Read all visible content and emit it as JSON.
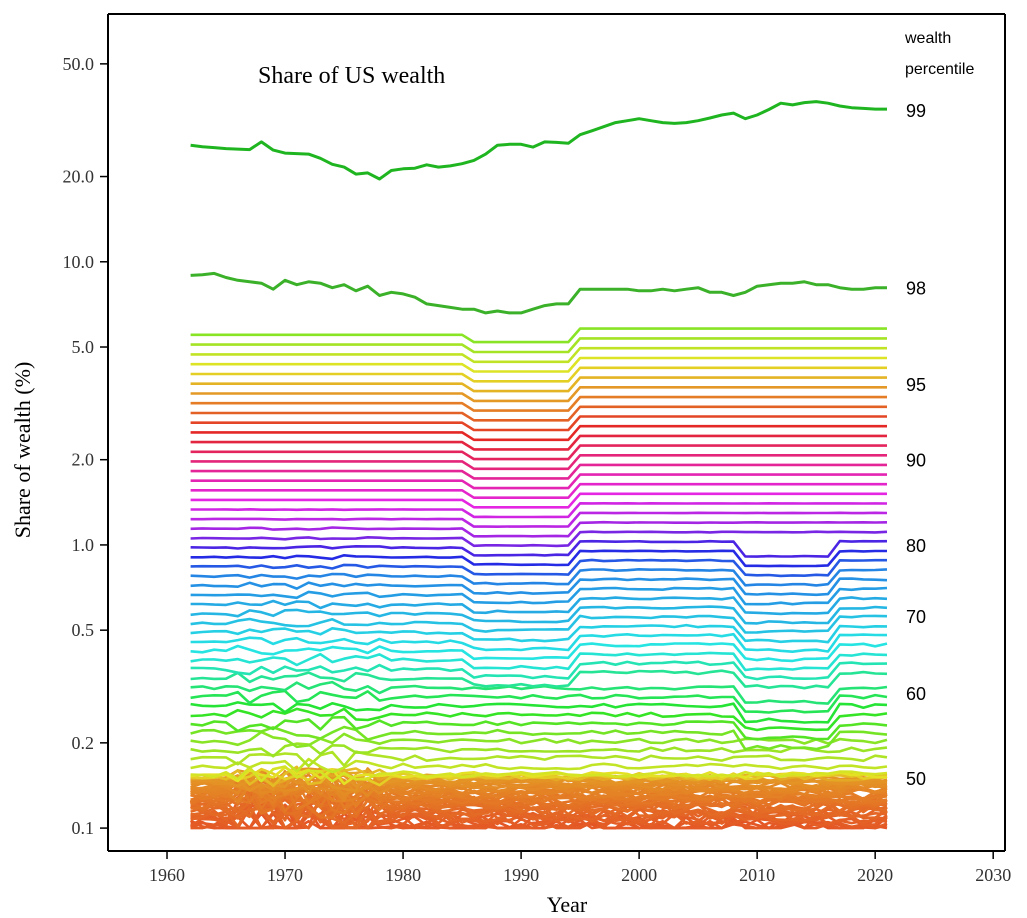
{
  "chart_data": {
    "type": "line",
    "title": "Share of US wealth",
    "xlabel": "Year",
    "ylabel": "Share of wealth (%)",
    "legend_title_lines": [
      "wealth",
      "percentile"
    ],
    "x_scale": "linear",
    "y_scale": "log",
    "xlim": [
      1955,
      2031
    ],
    "ylim": [
      0.083,
      75
    ],
    "x_ticks": [
      1960,
      1970,
      1980,
      1990,
      2000,
      2010,
      2020,
      2030
    ],
    "y_ticks": [
      0.1,
      0.2,
      0.5,
      1.0,
      2.0,
      5.0,
      10.0,
      20.0,
      50.0
    ],
    "y_tick_labels": [
      "0.1",
      "0.2",
      "0.5",
      "1.0",
      "2.0",
      "5.0",
      "10.0",
      "20.0",
      "50.0"
    ],
    "percentile_labels": [
      {
        "text": "99",
        "y": 34.4
      },
      {
        "text": "98",
        "y": 8.1
      },
      {
        "text": "95",
        "y": 3.7
      },
      {
        "text": "90",
        "y": 2.0
      },
      {
        "text": "80",
        "y": 1.0
      },
      {
        "text": "70",
        "y": 0.56
      },
      {
        "text": "60",
        "y": 0.3
      },
      {
        "text": "50",
        "y": 0.15
      }
    ],
    "colors": {
      "p99": "#1fb520",
      "p98": "#3bb12a",
      "p95": "#8ca514",
      "p90": "#c8900e",
      "p80": "#ee55c8",
      "p70": "#1aa8ec",
      "p60": "#18c2a8",
      "p50": "#b89a10"
    },
    "years": [
      1962,
      1963,
      1964,
      1965,
      1966,
      1967,
      1968,
      1969,
      1970,
      1971,
      1972,
      1973,
      1974,
      1975,
      1976,
      1977,
      1978,
      1979,
      1980,
      1981,
      1982,
      1983,
      1984,
      1985,
      1986,
      1987,
      1988,
      1989,
      1990,
      1991,
      1992,
      1993,
      1994,
      1995,
      1996,
      1997,
      1998,
      1999,
      2000,
      2001,
      2002,
      2003,
      2004,
      2005,
      2006,
      2007,
      2008,
      2009,
      2010,
      2011,
      2012,
      2013,
      2014,
      2015,
      2016,
      2017,
      2018,
      2019,
      2020,
      2021
    ],
    "series": [
      {
        "name": "99",
        "values": [
          25.8,
          25.5,
          25.3,
          25.1,
          25.0,
          24.9,
          26.5,
          24.8,
          24.2,
          24.1,
          24.0,
          23.2,
          22.1,
          21.6,
          20.4,
          20.6,
          19.6,
          21.0,
          21.3,
          21.4,
          22.0,
          21.6,
          21.8,
          22.2,
          22.8,
          24.0,
          25.8,
          26.0,
          26.0,
          25.4,
          26.5,
          26.4,
          26.2,
          28.1,
          29.0,
          30.0,
          31.0,
          31.5,
          32.0,
          31.5,
          31.0,
          30.8,
          31.0,
          31.5,
          32.2,
          33.0,
          33.5,
          32.0,
          33.0,
          34.5,
          36.3,
          35.8,
          36.5,
          36.8,
          36.3,
          35.5,
          35.0,
          34.8,
          34.6,
          34.6
        ]
      },
      {
        "name": "98",
        "values": [
          8.95,
          9.0,
          9.1,
          8.8,
          8.6,
          8.5,
          8.4,
          8.0,
          8.6,
          8.3,
          8.5,
          8.4,
          8.1,
          8.3,
          7.9,
          8.2,
          7.6,
          7.8,
          7.7,
          7.5,
          7.1,
          7.0,
          6.9,
          6.8,
          6.8,
          6.6,
          6.7,
          6.6,
          6.6,
          6.8,
          7.0,
          7.1,
          7.1,
          8.0,
          8.0,
          8.0,
          8.0,
          8.0,
          7.9,
          7.9,
          8.0,
          7.9,
          8.0,
          8.1,
          7.8,
          7.8,
          7.6,
          7.8,
          8.2,
          8.3,
          8.4,
          8.4,
          8.5,
          8.3,
          8.3,
          8.1,
          8.0,
          8.0,
          8.1,
          8.1
        ]
      }
    ]
  }
}
